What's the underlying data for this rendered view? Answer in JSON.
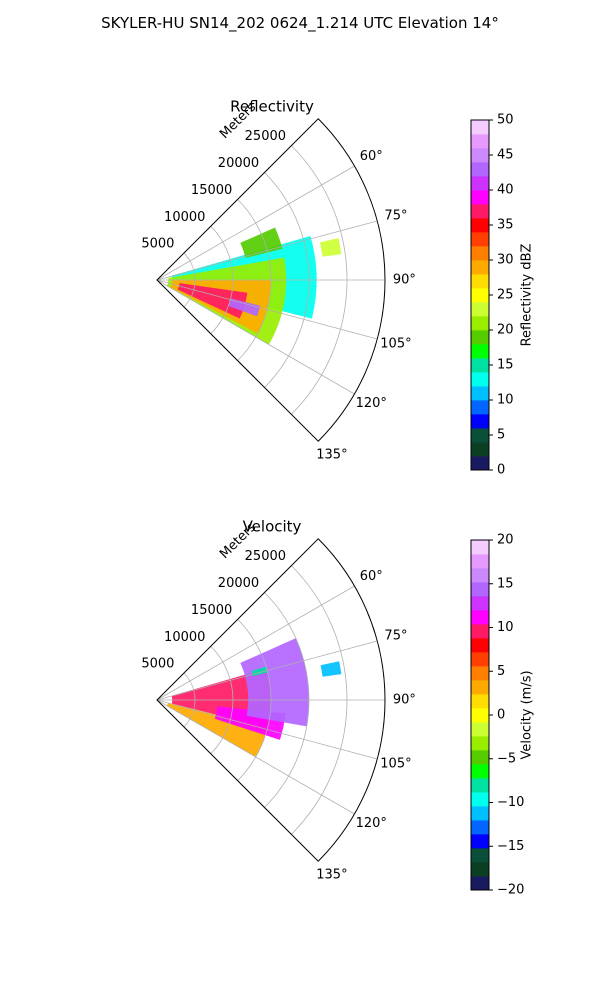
{
  "figure": {
    "title": "SKYLER-HU  SN14_202  0624_1.214 UTC Elevation 14°"
  },
  "chart_data": [
    {
      "type": "polar-sector-radar",
      "title": "Reflectivity",
      "radial_label": "Meters",
      "radial_ticks": [
        5000,
        10000,
        15000,
        20000,
        25000
      ],
      "radial_tick_labels": [
        "5000",
        "10000",
        "15000",
        "20000",
        "25000"
      ],
      "rmax": 30000,
      "azimuth_range_deg": [
        45,
        135
      ],
      "azimuth_ticks": [
        60,
        75,
        90,
        105,
        120,
        135
      ],
      "azimuth_tick_labels": [
        "60°",
        "75°",
        "90°",
        "105°",
        "120°",
        "135°"
      ],
      "grid": true,
      "field": "reflectivity",
      "echo_regions": [
        {
          "level": 12,
          "az": [
            74,
            104
          ],
          "r": [
            2000,
            21000
          ]
        },
        {
          "level": 20,
          "az": [
            80,
            120
          ],
          "r": [
            1500,
            17000
          ]
        },
        {
          "level": 28,
          "az": [
            90,
            118
          ],
          "r": [
            2000,
            15000
          ]
        },
        {
          "level": 36,
          "az": [
            98,
            115
          ],
          "r": [
            3000,
            12000
          ]
        },
        {
          "level": 42,
          "az": [
            104,
            110
          ],
          "r": [
            10000,
            14000
          ]
        },
        {
          "level": 18,
          "az": [
            66,
            76
          ],
          "r": [
            12000,
            17000
          ]
        },
        {
          "level": 22,
          "az": [
            77,
            82
          ],
          "r": [
            22000,
            24500
          ]
        }
      ],
      "colorbar": {
        "label": "Reflectivity dBZ",
        "range": [
          0,
          50
        ],
        "ticks": [
          0,
          5,
          10,
          15,
          20,
          25,
          30,
          35,
          40,
          45,
          50
        ],
        "tick_labels": [
          "0",
          "5",
          "10",
          "15",
          "20",
          "25",
          "30",
          "35",
          "40",
          "45",
          "50"
        ],
        "colors": [
          "#1a1a60",
          "#0b3f24",
          "#0a4f3a",
          "#0000ff",
          "#0066ff",
          "#00bfff",
          "#00ffee",
          "#00e0a0",
          "#00ff00",
          "#55cc00",
          "#99ee00",
          "#ccff33",
          "#ffff00",
          "#ffdd00",
          "#ffaa00",
          "#ff8000",
          "#ff4000",
          "#ff0000",
          "#ff1a66",
          "#ff00ff",
          "#cc33ff",
          "#b266ff",
          "#cc88ff",
          "#e699ff",
          "#f5ccff"
        ]
      }
    },
    {
      "type": "polar-sector-radar",
      "title": "Velocity",
      "radial_label": "Meters",
      "radial_ticks": [
        5000,
        10000,
        15000,
        20000,
        25000
      ],
      "radial_tick_labels": [
        "5000",
        "10000",
        "15000",
        "20000",
        "25000"
      ],
      "rmax": 30000,
      "azimuth_range_deg": [
        45,
        135
      ],
      "azimuth_ticks": [
        60,
        75,
        90,
        105,
        120,
        135
      ],
      "azimuth_tick_labels": [
        "60°",
        "75°",
        "90°",
        "105°",
        "120°",
        "135°"
      ],
      "grid": true,
      "field": "velocity",
      "echo_regions": [
        {
          "level": 9,
          "az": [
            74,
            104
          ],
          "r": [
            2000,
            15000
          ]
        },
        {
          "level": 3,
          "az": [
            104,
            120
          ],
          "r": [
            1500,
            15000
          ]
        },
        {
          "level": 11,
          "az": [
            96,
            108
          ],
          "r": [
            8000,
            17000
          ]
        },
        {
          "level": 14,
          "az": [
            66,
            100
          ],
          "r": [
            12000,
            20000
          ]
        },
        {
          "level": -11,
          "az": [
            78,
            82
          ],
          "r": [
            22000,
            24500
          ]
        },
        {
          "level": -8,
          "az": [
            73,
            76
          ],
          "r": [
            13000,
            15000
          ]
        }
      ],
      "colorbar": {
        "label": "Velocity (m/s)",
        "range": [
          -20,
          20
        ],
        "ticks": [
          -20,
          -15,
          -10,
          -5,
          0,
          5,
          10,
          15,
          20
        ],
        "tick_labels": [
          "−20",
          "−15",
          "−10",
          "−5",
          "0",
          "5",
          "10",
          "15",
          "20"
        ],
        "colors": [
          "#1a1a60",
          "#0b3f24",
          "#0a4f3a",
          "#0000ff",
          "#0066ff",
          "#00bfff",
          "#00ffee",
          "#00e0a0",
          "#00ff00",
          "#55cc00",
          "#99ee00",
          "#ccff33",
          "#ffff00",
          "#ffdd00",
          "#ffaa00",
          "#ff8000",
          "#ff4000",
          "#ff0000",
          "#ff1a66",
          "#ff00ff",
          "#cc33ff",
          "#b266ff",
          "#cc88ff",
          "#e699ff",
          "#f5ccff"
        ]
      }
    }
  ]
}
